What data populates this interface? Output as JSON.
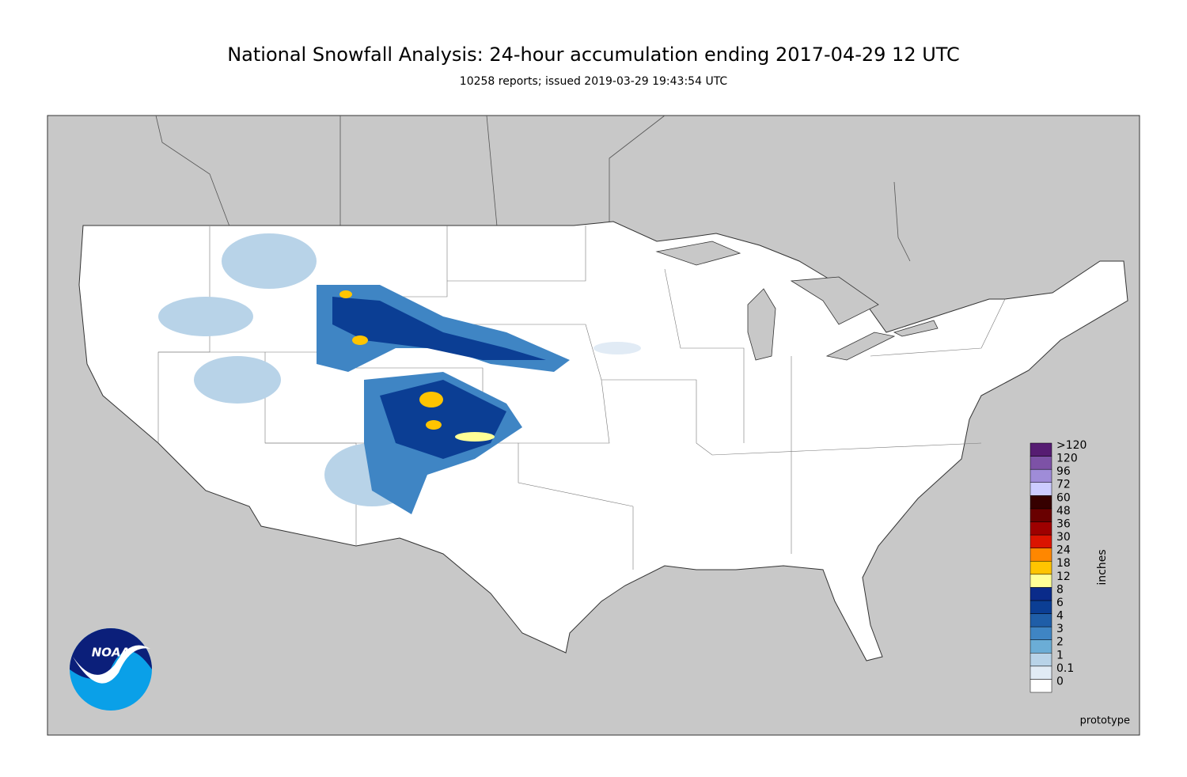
{
  "header": {
    "title": "National Snowfall Analysis: 24-hour accumulation ending 2017-04-29 12 UTC",
    "subtitle": "10258 reports; issued 2019-03-29 19:43:54 UTC"
  },
  "legend": {
    "unit": "inches",
    "bins": [
      {
        "label": "0",
        "color": "#ffffff"
      },
      {
        "label": "0.1",
        "color": "#e1ebf5"
      },
      {
        "label": "1",
        "color": "#b8d3e8"
      },
      {
        "label": "2",
        "color": "#6badd6"
      },
      {
        "label": "3",
        "color": "#3f85c4"
      },
      {
        "label": "4",
        "color": "#1f5ea8"
      },
      {
        "label": "6",
        "color": "#0b3e94"
      },
      {
        "label": "8",
        "color": "#0a2b8a"
      },
      {
        "label": "12",
        "color": "#ffff96"
      },
      {
        "label": "18",
        "color": "#ffc400"
      },
      {
        "label": "24",
        "color": "#ff8700"
      },
      {
        "label": "30",
        "color": "#db1400"
      },
      {
        "label": "36",
        "color": "#9e0000"
      },
      {
        "label": "48",
        "color": "#690000"
      },
      {
        "label": "60",
        "color": "#360000"
      },
      {
        "label": "72",
        "color": "#ccccff"
      },
      {
        "label": "96",
        "color": "#9f8cd8"
      },
      {
        "label": "120",
        "color": "#7d52a6"
      },
      {
        "label": ">120",
        "color": "#561c72"
      }
    ]
  },
  "logo": {
    "text": "NOAA"
  },
  "footer": {
    "note": "prototype"
  }
}
